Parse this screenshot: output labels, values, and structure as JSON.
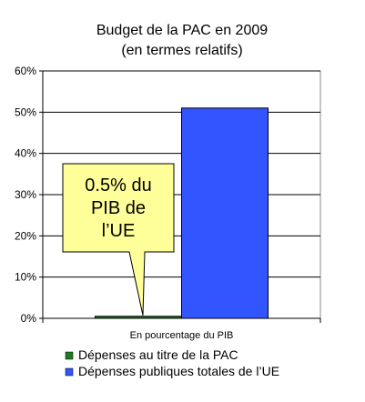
{
  "chart_data": {
    "type": "bar",
    "title": [
      "Budget de la PAC en 2009",
      "(en termes relatifs)"
    ],
    "xlabel": "",
    "ylabel": "",
    "categories": [
      "En pourcentage du PIB"
    ],
    "series": [
      {
        "name": "Dépenses au titre de la PAC",
        "values": [
          0.5
        ],
        "color": "#1f7a1f"
      },
      {
        "name": "Dépenses publiques totales de l’UE",
        "values": [
          51
        ],
        "color": "#3355ff"
      }
    ],
    "ylim": [
      0,
      60
    ],
    "yticks": [
      0,
      10,
      20,
      30,
      40,
      50,
      60
    ],
    "ytick_format": "{v}%",
    "grid": true,
    "legend": "bottom",
    "annotation": {
      "lines": [
        "0.5% du",
        "PIB de",
        "l’UE"
      ],
      "target_series": 0,
      "fill": "#ffff99"
    }
  }
}
